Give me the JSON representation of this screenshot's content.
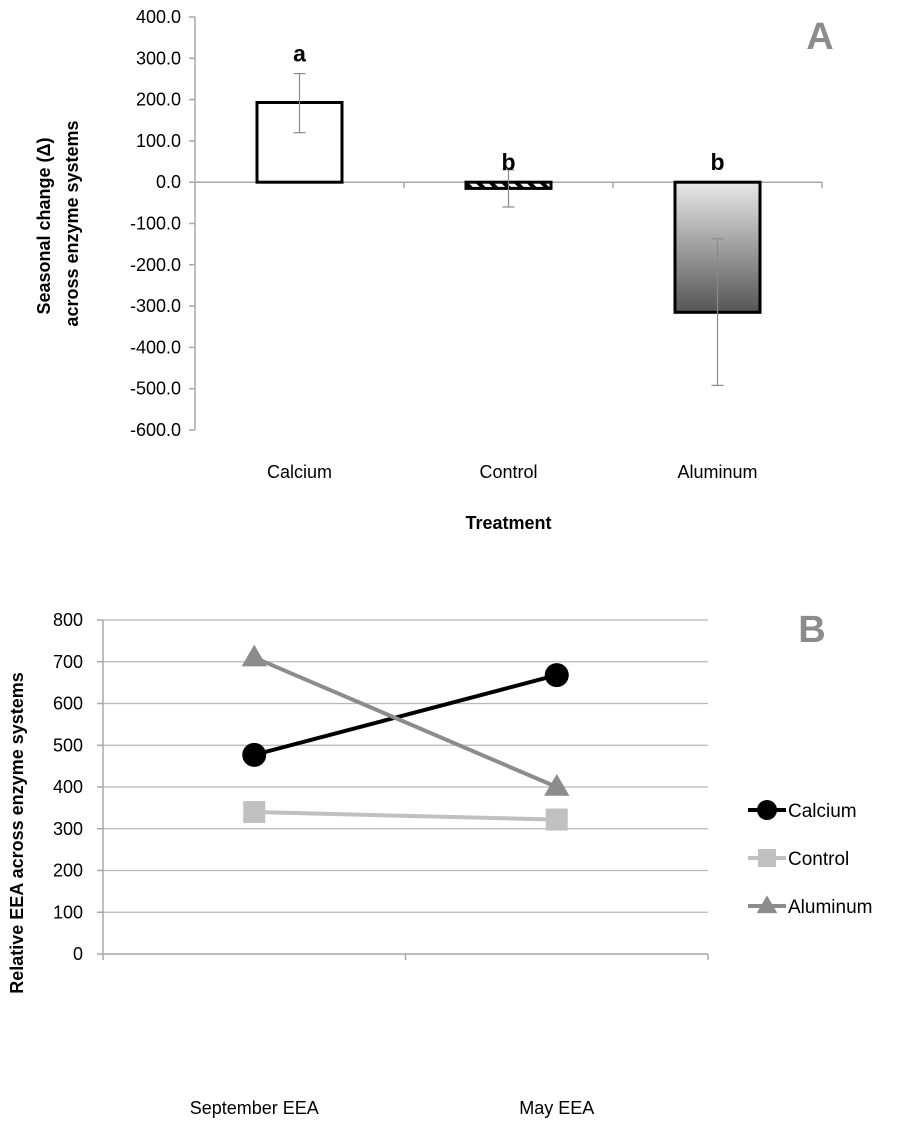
{
  "chart_data": [
    {
      "type": "bar",
      "panel_label": "A",
      "categories": [
        "Calcium",
        "Control",
        "Aluminum"
      ],
      "values": [
        193,
        -15,
        -315
      ],
      "error_plus": [
        70,
        45,
        178
      ],
      "error_minus": [
        73,
        45,
        177
      ],
      "significance_letters": [
        "a",
        "b",
        "b"
      ],
      "xlabel": "Treatment",
      "ylabel": "Seasonal change (Δ) across enzyme systems",
      "ylabel_lines": [
        "Seasonal change (Δ)",
        "across enzyme systems"
      ],
      "ylim": [
        -600,
        400
      ],
      "ytick_step": 100,
      "ytick_labels": [
        "400.0",
        "300.0",
        "200.0",
        "100.0",
        "0.0",
        "-100.0",
        "-200.0",
        "-300.0",
        "-400.0",
        "-500.0",
        "-600.0"
      ],
      "grid": false,
      "fills": [
        "none",
        "hatched",
        "gradient-gray"
      ],
      "colors": {
        "bar_stroke": "#000000",
        "gradient_top": "#e8e8e8",
        "gradient_bottom": "#555555",
        "errorbar": "#8a8a8a"
      }
    },
    {
      "type": "line",
      "panel_label": "B",
      "categories": [
        "September EEA",
        "May EEA"
      ],
      "series": [
        {
          "name": "Calcium",
          "values": [
            477,
            668
          ],
          "color": "#000000",
          "marker": "circle"
        },
        {
          "name": "Control",
          "values": [
            340,
            322
          ],
          "color": "#c0c0c0",
          "marker": "square"
        },
        {
          "name": "Aluminum",
          "values": [
            710,
            400
          ],
          "color": "#8c8c8c",
          "marker": "triangle"
        }
      ],
      "xlabel": "",
      "ylabel": "Relative EEA across enzyme systems",
      "ylim": [
        0,
        800
      ],
      "ytick_step": 100,
      "ytick_labels": [
        "800",
        "700",
        "600",
        "500",
        "400",
        "300",
        "200",
        "100",
        "0"
      ],
      "grid": true,
      "legend_position": "right"
    }
  ]
}
